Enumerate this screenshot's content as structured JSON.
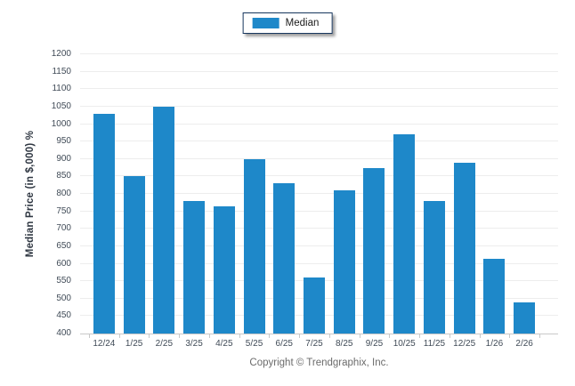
{
  "chart_data": {
    "type": "bar",
    "title": "",
    "xlabel": "",
    "ylabel": "Median Price (in $,000) %",
    "categories": [
      "12/24",
      "1/25",
      "2/25",
      "3/25",
      "4/25",
      "5/25",
      "6/25",
      "7/25",
      "8/25",
      "9/25",
      "10/25",
      "11/25",
      "12/25",
      "1/26",
      "2/26"
    ],
    "series": [
      {
        "name": "Median",
        "color": "#1e88c9",
        "values": [
          1030,
          850,
          1050,
          780,
          765,
          900,
          830,
          560,
          810,
          875,
          970,
          780,
          890,
          615,
          490
        ]
      }
    ],
    "ylim": [
      400,
      1200
    ],
    "ytick_step": 50,
    "grid": true,
    "legend_position": "top-center"
  },
  "footer": {
    "copyright": "Copyright © Trendgraphix, Inc."
  },
  "colors": {
    "bar": "#1e88c9",
    "legend_border": "#17375e",
    "tick_label": "#404b57",
    "axis_title": "#2f3742",
    "gridline": "#ededed",
    "axis_line": "#c8c8c8",
    "copyright_text": "#6b6b6b"
  }
}
